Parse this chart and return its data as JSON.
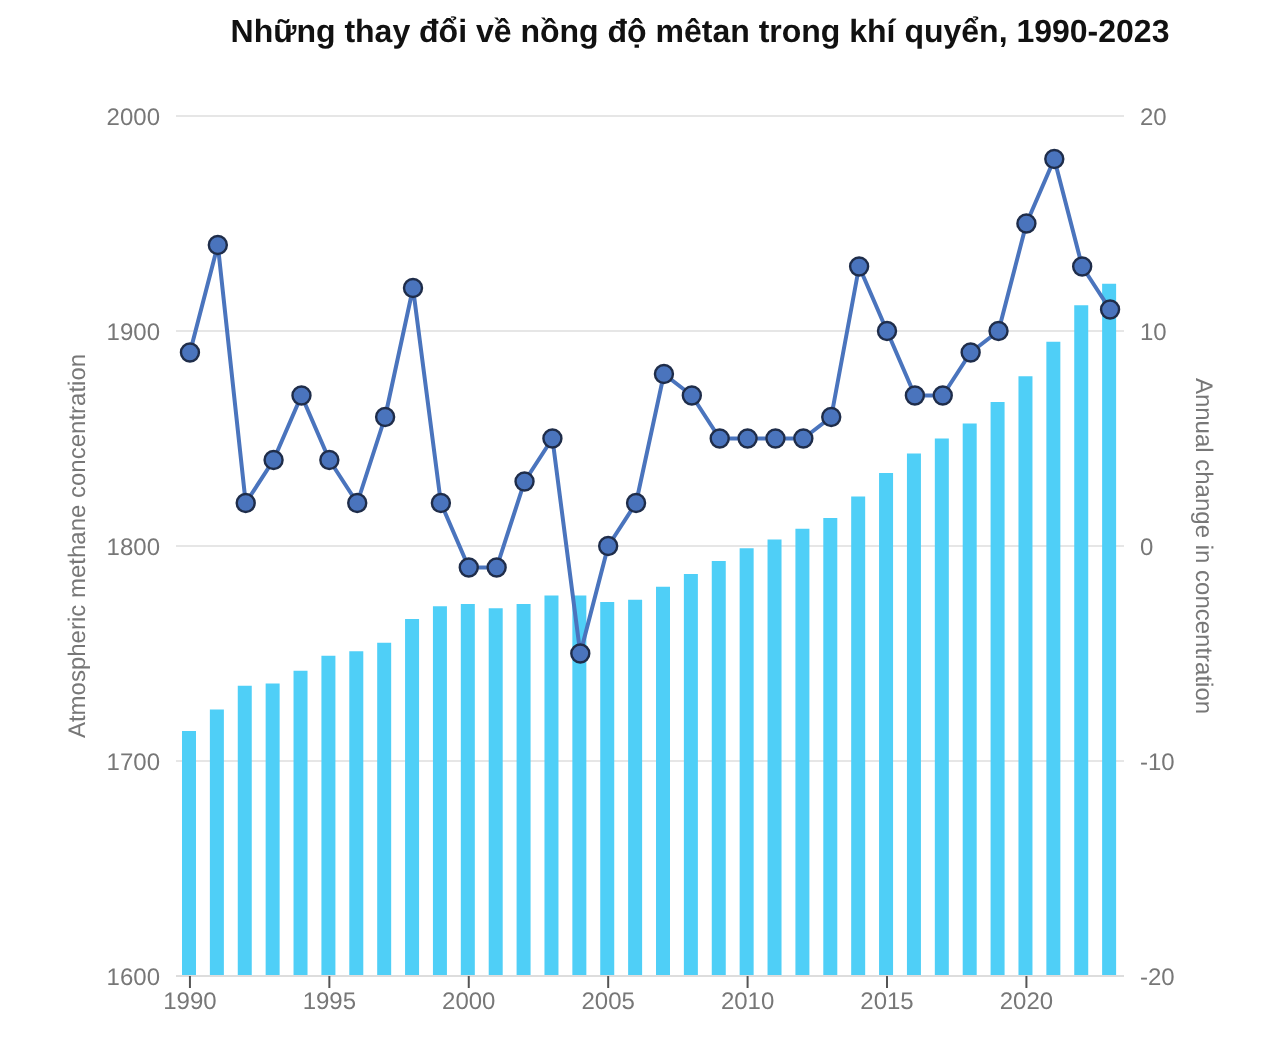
{
  "chart_data": {
    "type": "bar",
    "title": "Những thay đổi về nồng độ mêtan trong khí quyển, 1990-2023",
    "ylabel": "Atmospheric methane concentration",
    "y2label": "Annual change in concentration",
    "x": [
      1990,
      1991,
      1992,
      1993,
      1994,
      1995,
      1996,
      1997,
      1998,
      1999,
      2000,
      2001,
      2002,
      2003,
      2004,
      2005,
      2006,
      2007,
      2008,
      2009,
      2010,
      2011,
      2012,
      2013,
      2014,
      2015,
      2016,
      2017,
      2018,
      2019,
      2020,
      2021,
      2022,
      2023
    ],
    "series": [
      {
        "color": "#4fcff7",
        "values": [
          1714,
          1724,
          1735,
          1736,
          1742,
          1749,
          1751,
          1755,
          1766,
          1772,
          1773,
          1771,
          1773,
          1777,
          1777,
          1774,
          1775,
          1781,
          1787,
          1793,
          1799,
          1803,
          1808,
          1813,
          1823,
          1834,
          1843,
          1850,
          1857,
          1867,
          1879,
          1895,
          1912,
          1922
        ]
      },
      {
        "type": "line",
        "axis": "y2",
        "color": "#4a74bd",
        "marker": "circle",
        "values": [
          9,
          14,
          2,
          4,
          7,
          4,
          2,
          6,
          12,
          2,
          -1,
          -1,
          3,
          5,
          -5,
          0,
          2,
          8,
          7,
          5,
          5,
          5,
          5,
          6,
          13,
          10,
          7,
          7,
          9,
          10,
          15,
          18,
          13,
          11
        ]
      }
    ],
    "xlim": [
      1989.5,
      2023.5
    ],
    "xticks": [
      1990,
      1995,
      2000,
      2005,
      2010,
      2015,
      2020
    ],
    "ylim": [
      1600,
      2000
    ],
    "yticks": [
      1600,
      1700,
      1800,
      1900,
      2000
    ],
    "y2lim": [
      -20,
      20
    ],
    "y2ticks": [
      -20,
      -10,
      0,
      10,
      20
    ],
    "grid": "y",
    "legend": false
  }
}
